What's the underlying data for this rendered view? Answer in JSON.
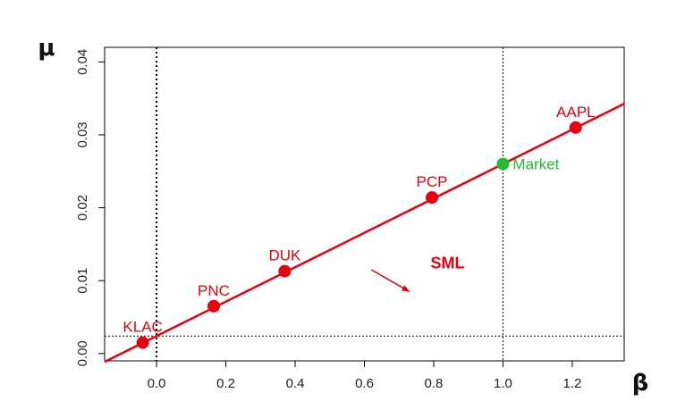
{
  "chart_data": {
    "type": "scatter",
    "title": "",
    "xlabel": "β",
    "ylabel": "μ",
    "xlim": [
      -0.15,
      1.35
    ],
    "ylim": [
      -0.001,
      0.042
    ],
    "xticks": [
      0.0,
      0.2,
      0.4,
      0.6,
      0.8,
      1.0,
      1.2
    ],
    "xtick_labels": [
      "0.0",
      "0.2",
      "0.4",
      "0.6",
      "0.8",
      "1.0",
      "1.2"
    ],
    "yticks": [
      0.0,
      0.01,
      0.02,
      0.03,
      0.04
    ],
    "ytick_labels": [
      "0.00",
      "0.01",
      "0.02",
      "0.03",
      "0.04"
    ],
    "grid": false,
    "points": [
      {
        "label": "KLAC",
        "x": -0.04,
        "y": 0.0015,
        "color": "#e8000f"
      },
      {
        "label": "PNC",
        "x": 0.165,
        "y": 0.0065,
        "color": "#e8000f"
      },
      {
        "label": "DUK",
        "x": 0.37,
        "y": 0.0113,
        "color": "#e8000f"
      },
      {
        "label": "PCP",
        "x": 0.795,
        "y": 0.0214,
        "color": "#e8000f"
      },
      {
        "label": "AAPL",
        "x": 1.21,
        "y": 0.031,
        "color": "#e8000f"
      },
      {
        "label": "Market",
        "x": 1.0,
        "y": 0.026,
        "color": "#22bb33"
      }
    ],
    "sml": {
      "label": "SML",
      "intercept": 0.0024,
      "slope": 0.0236,
      "color": "#e8000f"
    },
    "reference_lines": {
      "vertical_x": [
        0.0,
        1.0
      ],
      "horizontal_y": [
        0.0024
      ]
    }
  }
}
